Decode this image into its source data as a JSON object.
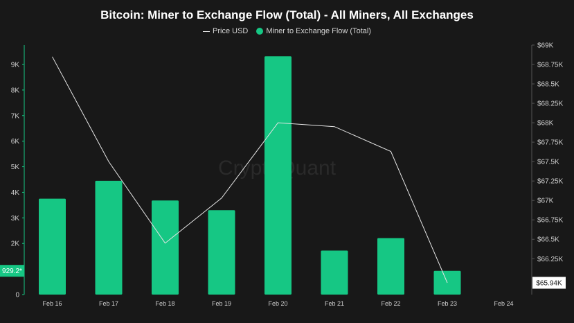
{
  "chart_data": {
    "type": "bar",
    "title": "Bitcoin: Miner to Exchange Flow (Total) - All Miners, All Exchanges",
    "categories": [
      "Feb 16",
      "Feb 17",
      "Feb 18",
      "Feb 19",
      "Feb 20",
      "Feb 21",
      "Feb 22",
      "Feb 23",
      "Feb 24"
    ],
    "series": [
      {
        "name": "Miner to Exchange Flow (Total)",
        "type": "bar",
        "axis": "left",
        "color": "#16c784",
        "values": [
          3750,
          4450,
          3680,
          3300,
          9320,
          1720,
          2210,
          929.2,
          null
        ]
      },
      {
        "name": "Price USD",
        "type": "line",
        "axis": "right",
        "color": "#e6e6e6",
        "values": [
          68850,
          67500,
          66450,
          67030,
          68000,
          67950,
          67630,
          65940,
          null
        ]
      }
    ],
    "left_axis": {
      "ylim": [
        0,
        9000
      ],
      "ticks": [
        0,
        1000,
        2000,
        3000,
        4000,
        5000,
        6000,
        7000,
        8000,
        9000
      ],
      "tick_labels": [
        "0",
        "1K",
        "2K",
        "3K",
        "4K",
        "5K",
        "6K",
        "7K",
        "8K",
        "9K"
      ]
    },
    "right_axis": {
      "ylim": [
        65940,
        69000
      ],
      "ticks": [
        66250,
        66500,
        66750,
        67000,
        67250,
        67500,
        67750,
        68000,
        68250,
        68500,
        68750,
        69000
      ],
      "tick_labels": [
        "$66.25K",
        "$66.5K",
        "$66.75K",
        "$67K",
        "$67.25K",
        "$67.5K",
        "$67.75K",
        "$68K",
        "$68.25K",
        "$68.5K",
        "$68.75K",
        "$69K"
      ]
    },
    "last_value_left": "929.2*",
    "last_value_right": "$65.94K",
    "watermark": "CryptoQuant",
    "grid": false
  }
}
